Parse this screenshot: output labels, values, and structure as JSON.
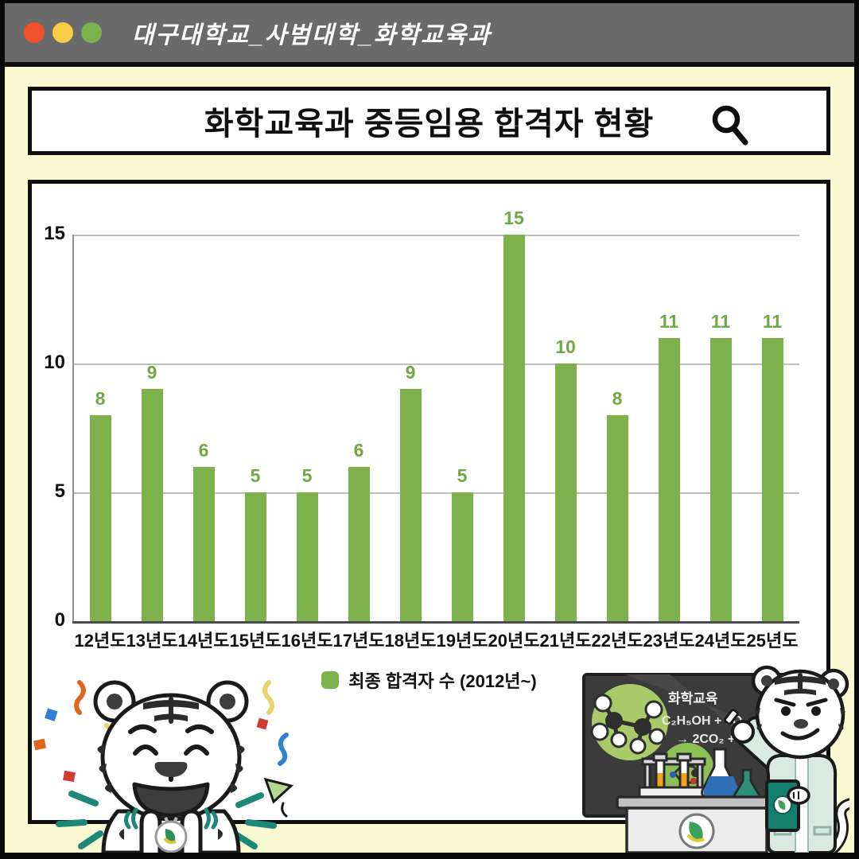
{
  "window": {
    "titlebar_text": "대구대학교_사범대학_화학교육과",
    "dot_colors": {
      "red": "#F1502D",
      "yellow": "#F7CE46",
      "green": "#7CB24D"
    }
  },
  "header": {
    "title": "화학교육과 중등임용 합격자 현황",
    "search_icon": "magnifier"
  },
  "chart_data": {
    "type": "bar",
    "title": "화학교육과 중등임용 합격자 현황",
    "categories": [
      "12년도",
      "13년도",
      "14년도",
      "15년도",
      "16년도",
      "17년도",
      "18년도",
      "19년도",
      "20년도",
      "21년도",
      "22년도",
      "23년도",
      "24년도",
      "25년도"
    ],
    "values": [
      8,
      9,
      6,
      5,
      5,
      6,
      9,
      5,
      15,
      10,
      8,
      11,
      11,
      11
    ],
    "xlabel": "",
    "ylabel": "",
    "ylim": [
      0,
      15
    ],
    "yticks": [
      0,
      5,
      10,
      15
    ],
    "grid": true,
    "legend": {
      "label": "최종 합격자 수 (2012년~)",
      "position": "bottom"
    },
    "bar_color": "#7CB14C",
    "label_color": "#72A843"
  },
  "board": {
    "line1": "화학교육",
    "line2": "C₂H₅OH + 3O₂",
    "line3": "→ 2CO₂ + 3H₂O"
  },
  "colors": {
    "background": "#FAFAD2",
    "titlebar": "#6A6A6A",
    "frame": "#0A0A0A",
    "teal_accent": "#1B8878"
  }
}
